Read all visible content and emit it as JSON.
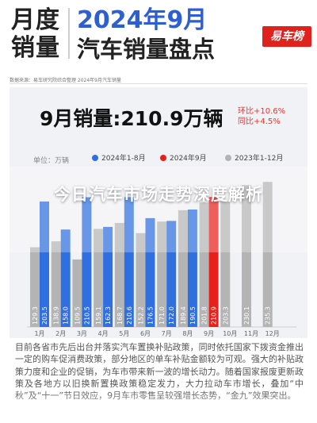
{
  "header": {
    "tag_line1": "月度",
    "tag_line2": "销量",
    "title_year": "2024年9月",
    "title_main": "汽车销量盘点",
    "logo_text": "易车榜",
    "source_line": "数据来源：易车研究院综合整理 2024年9月汽车销量"
  },
  "headline": {
    "sales": "9月销量:210.9万辆",
    "yoy": "环比+10.6%",
    "mom": "同比+4.5%"
  },
  "legend": {
    "unit": "单位：万辆",
    "items": [
      "2024年1-8月",
      "2024年9月",
      "2023年1-12月"
    ],
    "colors": [
      "#2f6fe0",
      "#e8201c",
      "#b4b4b4"
    ]
  },
  "overlay": {
    "title": "今日汽车市场走势深度解析"
  },
  "article": {
    "text": "目前各省市先后出台并落实汽车置换补贴政策，同时依托国家下拨资金推出一定的购车促消费政策，部分地区的单车补贴金额较为可观。强大的补贴政策力度和企业的促销，为车市带来新一波的增长动力。随着国家报废更新政策及各地方以旧换新置换政策稳定发力，大力拉动车市增长，叠加“中秋”及“十一”节日效应，9月车市零售呈较强增长态势，“金九”效果突出。"
  },
  "chart_data": {
    "type": "bar",
    "categories": [
      "1月",
      "2月",
      "3月",
      "4月",
      "5月",
      "6月",
      "7月",
      "8月",
      "9月",
      "10月",
      "11月",
      "12月"
    ],
    "series": [
      {
        "name": "2023年1-12月",
        "values": [
          129.3,
          138.9,
          109.5,
          159.1,
          168.7,
          152.2,
          171.0,
          189.4,
          201.8,
          203.3,
          230.1,
          235.3
        ]
      },
      {
        "name": "2024年",
        "values": [
          203.5,
          158.0,
          210.5,
          162.3,
          210.6,
          176.5,
          172.0,
          190.5,
          210.9,
          null,
          null,
          null
        ]
      }
    ],
    "series_colors": [
      "#b4b4b4",
      "#2f6fe0"
    ],
    "highlight_index": 8,
    "highlight_color": "#e8201c",
    "ylim": [
      0,
      260
    ],
    "xlabel": "",
    "ylabel": ""
  }
}
